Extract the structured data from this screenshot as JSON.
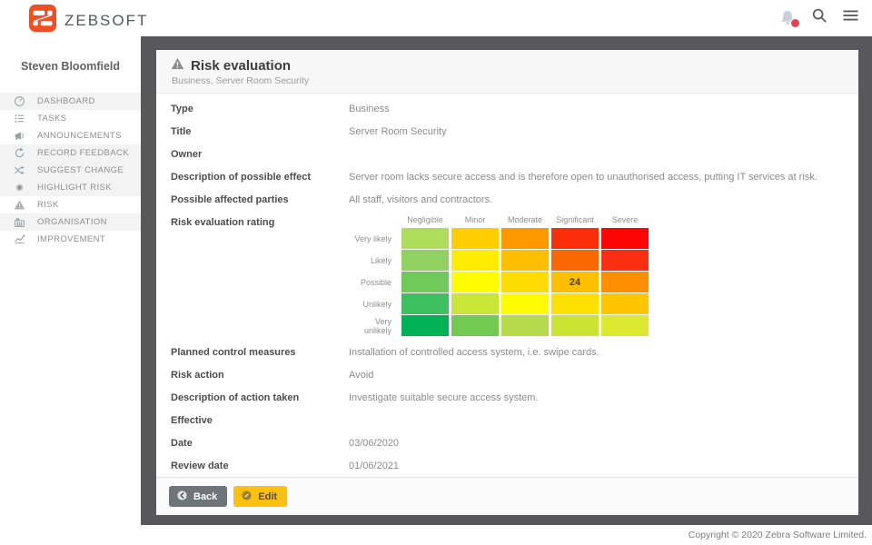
{
  "brand": {
    "name": "ZEBSOFT",
    "logo_color": "#f04e23"
  },
  "topbar": {
    "icons": [
      {
        "name": "notifications-bell-icon",
        "badge": true
      },
      {
        "name": "search-icon"
      },
      {
        "name": "menu-icon"
      }
    ]
  },
  "user": {
    "name": "Steven Bloomfield"
  },
  "sidebar": {
    "items": [
      {
        "label": "DASHBOARD",
        "icon": "gauge",
        "shaded": true
      },
      {
        "label": "TASKS",
        "icon": "tasks",
        "shaded": false
      },
      {
        "label": "ANNOUNCEMENTS",
        "icon": "megaphone",
        "shaded": false
      },
      {
        "label": "RECORD FEEDBACK",
        "icon": "refresh",
        "shaded": true
      },
      {
        "label": "SUGGEST CHANGE",
        "icon": "shuffle",
        "shaded": true
      },
      {
        "label": "HIGHLIGHT RISK",
        "icon": "circle",
        "shaded": true
      },
      {
        "label": "RISK",
        "icon": "warning",
        "shaded": false
      },
      {
        "label": "ORGANISATION",
        "icon": "building",
        "shaded": true
      },
      {
        "label": "IMPROVEMENT",
        "icon": "chart",
        "shaded": false
      }
    ]
  },
  "panel": {
    "title": "Risk evaluation",
    "subtitle": "Business, Server Room Security",
    "fields": [
      {
        "label": "Type",
        "value": "Business"
      },
      {
        "label": "Title",
        "value": "Server Room Security"
      },
      {
        "label": "Owner",
        "value": ""
      },
      {
        "label": "Description of possible effect",
        "value": "Server room lacks secure access and is therefore open to unauthorised access, putting IT services at risk."
      },
      {
        "label": "Possible affected parties",
        "value": "All staff, visitors and contractors."
      },
      {
        "label": "Risk evaluation rating",
        "value": "",
        "matrix": true
      },
      {
        "label": "Planned control measures",
        "value": "Installation of controlled access system, i.e. swipe cards."
      },
      {
        "label": "Risk action",
        "value": "Avoid"
      },
      {
        "label": "Description of action taken",
        "value": "Investigate suitable secure access system."
      },
      {
        "label": "Effective",
        "value": ""
      },
      {
        "label": "Date",
        "value": "03/06/2020"
      },
      {
        "label": "Review date",
        "value": "01/06/2021"
      }
    ],
    "buttons": [
      {
        "label": "Back",
        "style": "back",
        "icon": "arrow-left-circle"
      },
      {
        "label": "Edit",
        "style": "edit",
        "icon": "edit-circle"
      }
    ]
  },
  "risk_matrix": {
    "columns": [
      "Negligible",
      "Minor",
      "Moderate",
      "Significant",
      "Severe"
    ],
    "rows": [
      "Very likely",
      "Likely",
      "Possible",
      "Unlikely",
      "Very unlikely"
    ],
    "colors": [
      [
        "#aedc5b",
        "#ffcd00",
        "#ff9700",
        "#fb2d0b",
        "#fd0505"
      ],
      [
        "#90d161",
        "#ffec00",
        "#ffbe00",
        "#fb6700",
        "#fa2e11"
      ],
      [
        "#6fc95b",
        "#fffb00",
        "#ffdc00",
        "#ffbe00",
        "#ff8d00"
      ],
      [
        "#3fc060",
        "#c9e637",
        "#fffb00",
        "#ffe000",
        "#ffc600"
      ],
      [
        "#00b254",
        "#72ca51",
        "#b5db4d",
        "#cbe431",
        "#dde930"
      ]
    ],
    "values": [
      [
        "",
        "",
        "",
        "",
        ""
      ],
      [
        "",
        "",
        "",
        "",
        ""
      ],
      [
        "",
        "",
        "",
        "24",
        ""
      ],
      [
        "",
        "",
        "",
        "",
        ""
      ],
      [
        "",
        "",
        "",
        "",
        ""
      ]
    ],
    "selected": {
      "row": "Possible",
      "column": "Significant",
      "score": "24"
    }
  },
  "footer": {
    "copyright": "Copyright © 2020 Zebra Software Limited."
  }
}
